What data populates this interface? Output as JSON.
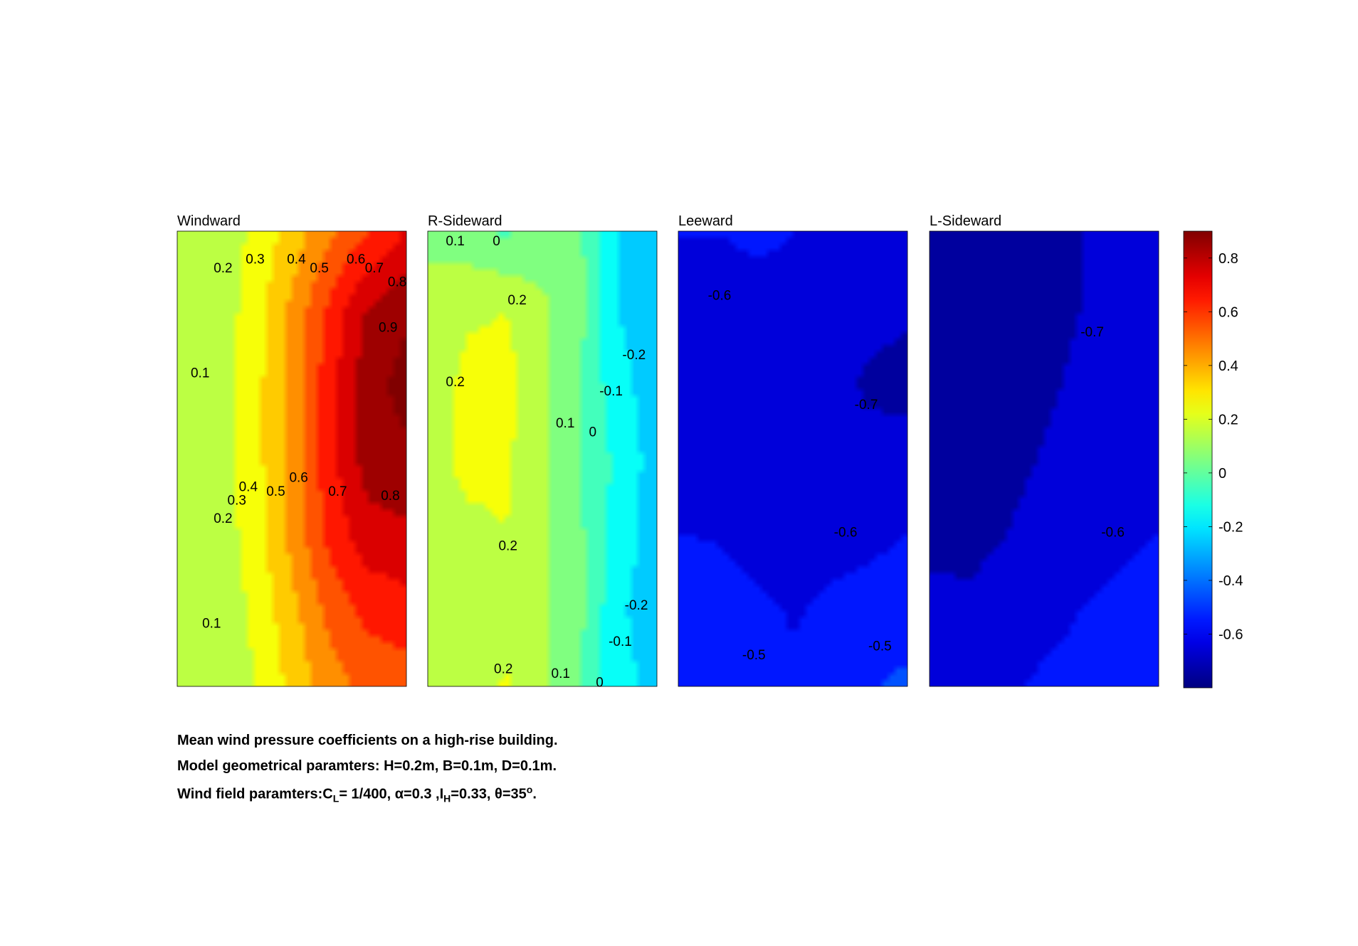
{
  "chart_data": {
    "type": "contour",
    "colormap": "jet",
    "colorbar": {
      "range": [
        -0.8,
        0.9
      ],
      "ticks": [
        "0.8",
        "0.6",
        "0.4",
        "0.2",
        "0",
        "-0.2",
        "-0.4",
        "-0.6"
      ],
      "tick_values": [
        0.8,
        0.6,
        0.4,
        0.2,
        0,
        -0.2,
        -0.4,
        -0.6
      ]
    },
    "panels": [
      {
        "title": "Windward",
        "rows": [
          [
            0.1,
            0.14,
            0.22,
            0.35,
            0.48,
            0.6,
            0.7
          ],
          [
            0.1,
            0.14,
            0.25,
            0.42,
            0.62,
            0.8,
            0.88
          ],
          [
            0.1,
            0.14,
            0.26,
            0.44,
            0.66,
            0.86,
            0.93
          ],
          [
            0.1,
            0.14,
            0.26,
            0.44,
            0.66,
            0.84,
            0.88
          ],
          [
            0.1,
            0.14,
            0.25,
            0.43,
            0.63,
            0.76,
            0.78
          ],
          [
            0.1,
            0.13,
            0.22,
            0.37,
            0.53,
            0.63,
            0.66
          ],
          [
            0.1,
            0.12,
            0.2,
            0.33,
            0.45,
            0.53,
            0.55
          ]
        ],
        "labels": [
          {
            "text": "0.2",
            "x": 0.2,
            "y": 0.08
          },
          {
            "text": "0.3",
            "x": 0.34,
            "y": 0.06
          },
          {
            "text": "0.4",
            "x": 0.52,
            "y": 0.06
          },
          {
            "text": "0.5",
            "x": 0.62,
            "y": 0.08
          },
          {
            "text": "0.6",
            "x": 0.78,
            "y": 0.06
          },
          {
            "text": "0.7",
            "x": 0.86,
            "y": 0.08
          },
          {
            "text": "0.8",
            "x": 0.96,
            "y": 0.11
          },
          {
            "text": "0.9",
            "x": 0.92,
            "y": 0.21
          },
          {
            "text": "0.1",
            "x": 0.1,
            "y": 0.31
          },
          {
            "text": "0.4",
            "x": 0.31,
            "y": 0.56
          },
          {
            "text": "0.5",
            "x": 0.43,
            "y": 0.57
          },
          {
            "text": "0.6",
            "x": 0.53,
            "y": 0.54
          },
          {
            "text": "0.7",
            "x": 0.7,
            "y": 0.57
          },
          {
            "text": "0.8",
            "x": 0.93,
            "y": 0.58
          },
          {
            "text": "0.3",
            "x": 0.26,
            "y": 0.59
          },
          {
            "text": "0.2",
            "x": 0.2,
            "y": 0.63
          },
          {
            "text": "0.1",
            "x": 0.15,
            "y": 0.86
          }
        ]
      },
      {
        "title": "R-Sideward",
        "rows": [
          [
            0.08,
            0.05,
            -0.01,
            0.04,
            0.02,
            -0.2,
            -0.24
          ],
          [
            0.13,
            0.18,
            0.2,
            0.12,
            0.04,
            -0.2,
            -0.25
          ],
          [
            0.13,
            0.24,
            0.24,
            0.12,
            0.0,
            -0.16,
            -0.25
          ],
          [
            0.15,
            0.24,
            0.22,
            0.11,
            0.0,
            -0.12,
            -0.24
          ],
          [
            0.13,
            0.17,
            0.2,
            0.11,
            0.02,
            -0.14,
            -0.24
          ],
          [
            0.12,
            0.12,
            0.15,
            0.12,
            0.03,
            -0.18,
            -0.25
          ],
          [
            0.12,
            0.13,
            0.21,
            0.12,
            0.0,
            -0.16,
            -0.23
          ]
        ],
        "labels": [
          {
            "text": "0.1",
            "x": 0.12,
            "y": 0.02
          },
          {
            "text": "0",
            "x": 0.3,
            "y": 0.02
          },
          {
            "text": "0.2",
            "x": 0.39,
            "y": 0.15
          },
          {
            "text": "0.2",
            "x": 0.12,
            "y": 0.33
          },
          {
            "text": "-0.2",
            "x": 0.9,
            "y": 0.27
          },
          {
            "text": "-0.1",
            "x": 0.8,
            "y": 0.35
          },
          {
            "text": "0.1",
            "x": 0.6,
            "y": 0.42
          },
          {
            "text": "0",
            "x": 0.72,
            "y": 0.44
          },
          {
            "text": "0.2",
            "x": 0.35,
            "y": 0.69
          },
          {
            "text": "-0.2",
            "x": 0.91,
            "y": 0.82
          },
          {
            "text": "-0.1",
            "x": 0.84,
            "y": 0.9
          },
          {
            "text": "0.2",
            "x": 0.33,
            "y": 0.96
          },
          {
            "text": "0.1",
            "x": 0.58,
            "y": 0.97
          },
          {
            "text": "0",
            "x": 0.75,
            "y": 0.99
          }
        ]
      },
      {
        "title": "Leeward",
        "rows": [
          [
            -0.6,
            -0.6,
            -0.58,
            -0.6,
            -0.62,
            -0.62,
            -0.62
          ],
          [
            -0.65,
            -0.65,
            -0.64,
            -0.64,
            -0.66,
            -0.68,
            -0.69
          ],
          [
            -0.64,
            -0.65,
            -0.65,
            -0.65,
            -0.67,
            -0.71,
            -0.72
          ],
          [
            -0.64,
            -0.65,
            -0.66,
            -0.66,
            -0.67,
            -0.68,
            -0.67
          ],
          [
            -0.6,
            -0.61,
            -0.64,
            -0.65,
            -0.64,
            -0.62,
            -0.6
          ],
          [
            -0.53,
            -0.54,
            -0.58,
            -0.61,
            -0.58,
            -0.57,
            -0.56
          ],
          [
            -0.52,
            -0.52,
            -0.54,
            -0.58,
            -0.55,
            -0.51,
            -0.48
          ]
        ],
        "labels": [
          {
            "text": "-0.6",
            "x": 0.18,
            "y": 0.14
          },
          {
            "text": "-0.7",
            "x": 0.82,
            "y": 0.38
          },
          {
            "text": "-0.6",
            "x": 0.73,
            "y": 0.66
          },
          {
            "text": "-0.5",
            "x": 0.33,
            "y": 0.93
          },
          {
            "text": "-0.5",
            "x": 0.88,
            "y": 0.91
          }
        ]
      },
      {
        "title": "L-Sideward",
        "rows": [
          [
            -0.75,
            -0.75,
            -0.74,
            -0.72,
            -0.7,
            -0.68,
            -0.66
          ],
          [
            -0.74,
            -0.75,
            -0.75,
            -0.73,
            -0.7,
            -0.68,
            -0.66
          ],
          [
            -0.74,
            -0.75,
            -0.75,
            -0.72,
            -0.68,
            -0.66,
            -0.64
          ],
          [
            -0.73,
            -0.74,
            -0.74,
            -0.69,
            -0.65,
            -0.64,
            -0.63
          ],
          [
            -0.72,
            -0.73,
            -0.7,
            -0.65,
            -0.62,
            -0.61,
            -0.6
          ],
          [
            -0.68,
            -0.68,
            -0.65,
            -0.62,
            -0.6,
            -0.59,
            -0.58
          ],
          [
            -0.63,
            -0.64,
            -0.61,
            -0.59,
            -0.58,
            -0.57,
            -0.56
          ]
        ],
        "labels": [
          {
            "text": "-0.7",
            "x": 0.71,
            "y": 0.22
          },
          {
            "text": "-0.6",
            "x": 0.8,
            "y": 0.66
          }
        ]
      }
    ]
  },
  "caption": {
    "line1": "Mean wind pressure coefficients on a high-rise building.",
    "line2": "Model geometrical paramters: H=0.2m, B=0.1m, D=0.1m.",
    "line3": {
      "prefix": "Wind field paramters:C",
      "cl_sub": "L",
      "cl_val": "= 1/400, ",
      "alpha": "α=0.3 ,I",
      "ih_sub": "H",
      "ih_val": "=0.33, θ=35",
      "deg": "o",
      "end": "."
    }
  }
}
